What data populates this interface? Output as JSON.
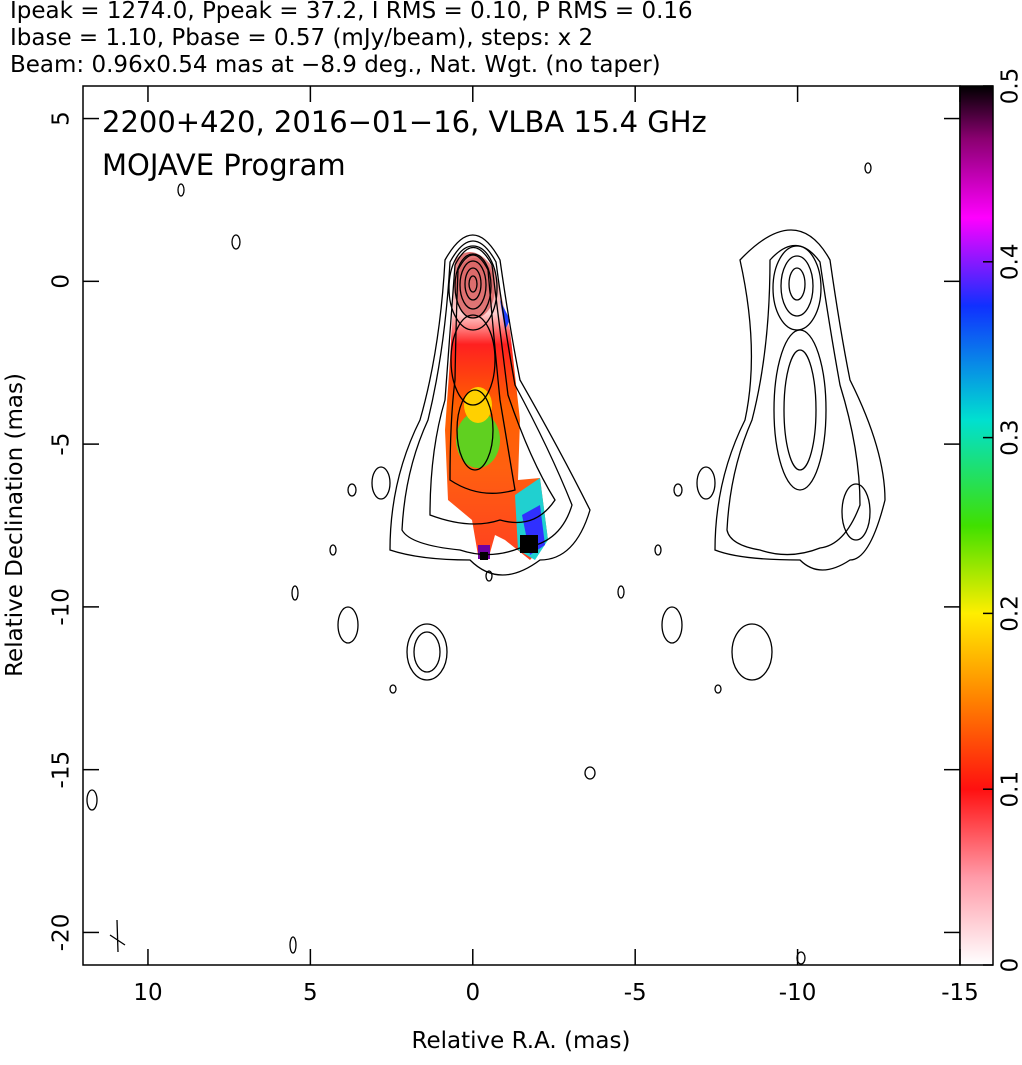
{
  "chart_data": {
    "type": "image",
    "header": [
      "Ipeak = 1274.0, Ppeak = 37.2, I RMS = 0.10, P RMS = 0.16",
      "Ibase = 1.10, Pbase = 0.57 (mJy/beam), steps: x 2",
      "Beam: 0.96x0.54 mas at −8.9 deg., Nat. Wgt. (no taper)"
    ],
    "title": "2200+420, 2016−01−16, VLBA 15.4 GHz",
    "subtitle": "MOJAVE Program",
    "xlabel": "Relative R.A. (mas)",
    "ylabel": "Relative Declination (mas)",
    "xlim": [
      12,
      -15
    ],
    "xticks": [
      10,
      5,
      0,
      -5,
      -10,
      -15
    ],
    "ylim": [
      -21,
      6
    ],
    "yticks": [
      5,
      0,
      -5,
      -10,
      -15,
      -20
    ],
    "colorbar_lim": [
      0,
      0.5
    ],
    "colorbar_ticks": [
      0,
      0.1,
      0.2,
      0.3,
      0.4,
      0.5
    ]
  }
}
